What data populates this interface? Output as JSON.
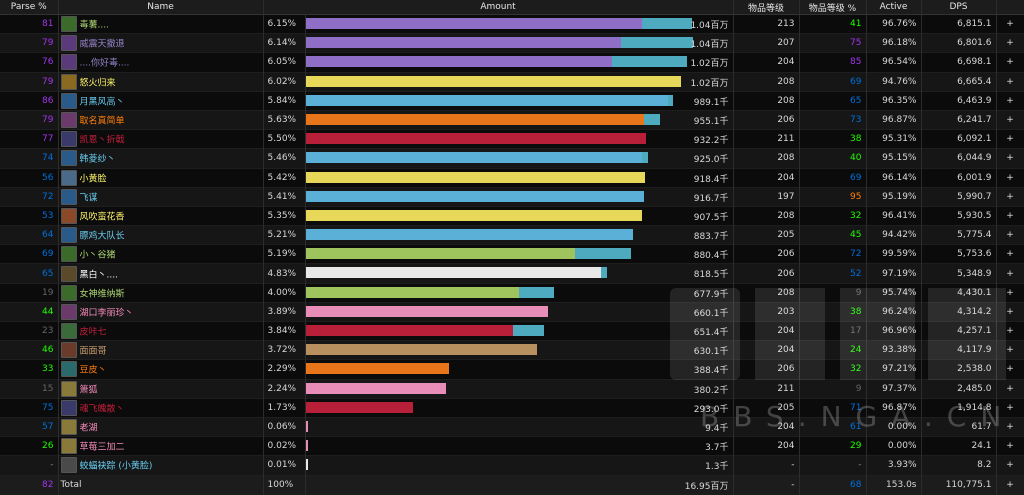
{
  "headers": {
    "parse": "Parse %",
    "name": "Name",
    "amount": "Amount",
    "ilvl": "物品等级",
    "ilvl_pct": "物品等级 %",
    "active": "Active",
    "dps": "DPS"
  },
  "rows": [
    {
      "parse": "81",
      "parse_color": "#a335ee",
      "name": "毒薯....",
      "name_color": "#abd473",
      "icon_color": "#3a6b2a",
      "pct": "6.15%",
      "frac1": 0.875,
      "frac2": 0.13,
      "c1": "#8f6ec8",
      "c2": "#4eaabf",
      "amount": "1.04百万",
      "ilvl": "213",
      "ilvl_pct": "41",
      "ilvl_pct_color": "#1eff00",
      "active": "96.76%",
      "dps": "6,815.1",
      "plus": "+"
    },
    {
      "parse": "79",
      "parse_color": "#a335ee",
      "name": "威震天撤退",
      "name_color": "#9482c9",
      "icon_color": "#5a3a7a",
      "pct": "6.14%",
      "frac1": 0.82,
      "frac2": 0.187,
      "c1": "#8f6ec8",
      "c2": "#4eaabf",
      "amount": "1.04百万",
      "ilvl": "207",
      "ilvl_pct": "75",
      "ilvl_pct_color": "#a335ee",
      "active": "96.18%",
      "dps": "6,801.6",
      "plus": "+"
    },
    {
      "parse": "76",
      "parse_color": "#a335ee",
      "name": "....你好毒....",
      "name_color": "#9482c9",
      "icon_color": "#5a3a7a",
      "pct": "6.05%",
      "frac1": 0.795,
      "frac2": 0.195,
      "c1": "#8f6ec8",
      "c2": "#4eaabf",
      "amount": "1.02百万",
      "ilvl": "204",
      "ilvl_pct": "85",
      "ilvl_pct_color": "#a335ee",
      "active": "96.54%",
      "dps": "6,698.1",
      "plus": "+"
    },
    {
      "parse": "79",
      "parse_color": "#a335ee",
      "name": "怒火归来",
      "name_color": "#fff569",
      "icon_color": "#8a6a20",
      "pct": "6.02%",
      "frac1": 0.975,
      "frac2": 0.0,
      "c1": "#e8d85a",
      "c2": "#4eaabf",
      "amount": "1.02百万",
      "ilvl": "208",
      "ilvl_pct": "69",
      "ilvl_pct_color": "#0070dd",
      "active": "94.76%",
      "dps": "6,665.4",
      "plus": "+"
    },
    {
      "parse": "86",
      "parse_color": "#a335ee",
      "name": "月黑风高丶",
      "name_color": "#69ccf0",
      "icon_color": "#2a5a8a",
      "pct": "5.84%",
      "frac1": 0.942,
      "frac2": 0.012,
      "c1": "#5bb0d8",
      "c2": "#4eaabf",
      "amount": "989.1千",
      "ilvl": "208",
      "ilvl_pct": "65",
      "ilvl_pct_color": "#0070dd",
      "active": "96.35%",
      "dps": "6,463.9",
      "plus": "+"
    },
    {
      "parse": "79",
      "parse_color": "#a335ee",
      "name": "取名真简单",
      "name_color": "#ff7d0a",
      "icon_color": "#6a3a6a",
      "pct": "5.63%",
      "frac1": 0.88,
      "frac2": 0.04,
      "c1": "#e8751a",
      "c2": "#4eaabf",
      "amount": "955.1千",
      "ilvl": "206",
      "ilvl_pct": "73",
      "ilvl_pct_color": "#0070dd",
      "active": "96.87%",
      "dps": "6,241.7",
      "plus": "+"
    },
    {
      "parse": "77",
      "parse_color": "#a335ee",
      "name": "凯恩丶折戟",
      "name_color": "#c41f3b",
      "icon_color": "#3a3a6a",
      "pct": "5.50%",
      "frac1": 0.885,
      "frac2": 0.0,
      "c1": "#b8203a",
      "c2": "#4eaabf",
      "amount": "932.2千",
      "ilvl": "211",
      "ilvl_pct": "38",
      "ilvl_pct_color": "#1eff00",
      "active": "95.31%",
      "dps": "6,092.1",
      "plus": "+"
    },
    {
      "parse": "74",
      "parse_color": "#0070dd",
      "name": "韩菱纱丶",
      "name_color": "#69ccf0",
      "icon_color": "#2a5a8a",
      "pct": "5.46%",
      "frac1": 0.873,
      "frac2": 0.017,
      "c1": "#5bb0d8",
      "c2": "#4eaabf",
      "amount": "925.0千",
      "ilvl": "208",
      "ilvl_pct": "40",
      "ilvl_pct_color": "#1eff00",
      "active": "95.15%",
      "dps": "6,044.9",
      "plus": "+"
    },
    {
      "parse": "56",
      "parse_color": "#0070dd",
      "name": "小黄脸",
      "name_color": "#fff569",
      "icon_color": "#4a6a8a",
      "pct": "5.42%",
      "frac1": 0.883,
      "frac2": 0.0,
      "c1": "#e8d85a",
      "c2": "#4eaabf",
      "amount": "918.4千",
      "ilvl": "204",
      "ilvl_pct": "69",
      "ilvl_pct_color": "#0070dd",
      "active": "96.14%",
      "dps": "6,001.9",
      "plus": "+"
    },
    {
      "parse": "72",
      "parse_color": "#0070dd",
      "name": "飞谋",
      "name_color": "#69ccf0",
      "icon_color": "#2a5a8a",
      "pct": "5.41%",
      "frac1": 0.88,
      "frac2": 0.0,
      "c1": "#5bb0d8",
      "c2": "#4eaabf",
      "amount": "916.7千",
      "ilvl": "197",
      "ilvl_pct": "95",
      "ilvl_pct_color": "#ff8000",
      "active": "95.19%",
      "dps": "5,990.7",
      "plus": "+"
    },
    {
      "parse": "53",
      "parse_color": "#0070dd",
      "name": "风吹蛮花香",
      "name_color": "#fff569",
      "icon_color": "#8a4a2a",
      "pct": "5.35%",
      "frac1": 0.873,
      "frac2": 0.0,
      "c1": "#e8d85a",
      "c2": "#4eaabf",
      "amount": "907.5千",
      "ilvl": "208",
      "ilvl_pct": "32",
      "ilvl_pct_color": "#1eff00",
      "active": "96.41%",
      "dps": "5,930.5",
      "plus": "+"
    },
    {
      "parse": "64",
      "parse_color": "#0070dd",
      "name": "膘鸡大队长",
      "name_color": "#69ccf0",
      "icon_color": "#2a5a8a",
      "pct": "5.21%",
      "frac1": 0.85,
      "frac2": 0.0,
      "c1": "#5bb0d8",
      "c2": "#4eaabf",
      "amount": "883.7千",
      "ilvl": "205",
      "ilvl_pct": "45",
      "ilvl_pct_color": "#1eff00",
      "active": "94.42%",
      "dps": "5,775.4",
      "plus": "+"
    },
    {
      "parse": "69",
      "parse_color": "#0070dd",
      "name": "小丶谷猪",
      "name_color": "#abd473",
      "icon_color": "#3a6b2a",
      "pct": "5.19%",
      "frac1": 0.7,
      "frac2": 0.145,
      "c1": "#9fc45e",
      "c2": "#4eaabf",
      "amount": "880.4千",
      "ilvl": "206",
      "ilvl_pct": "72",
      "ilvl_pct_color": "#0070dd",
      "active": "99.59%",
      "dps": "5,753.6",
      "plus": "+"
    },
    {
      "parse": "65",
      "parse_color": "#0070dd",
      "name": "黑白丶....",
      "name_color": "#ffffff",
      "icon_color": "#5a4a2a",
      "pct": "4.83%",
      "frac1": 0.768,
      "frac2": 0.015,
      "c1": "#e8e8e8",
      "c2": "#4eaabf",
      "amount": "818.5千",
      "ilvl": "206",
      "ilvl_pct": "52",
      "ilvl_pct_color": "#0070dd",
      "active": "97.19%",
      "dps": "5,348.9",
      "plus": "+"
    },
    {
      "parse": "19",
      "parse_color": "#666666",
      "name": "女神维纳斯",
      "name_color": "#abd473",
      "icon_color": "#3a6b2a",
      "pct": "4.00%",
      "frac1": 0.555,
      "frac2": 0.09,
      "c1": "#9fc45e",
      "c2": "#4eaabf",
      "amount": "677.9千",
      "ilvl": "208",
      "ilvl_pct": "9",
      "ilvl_pct_color": "#666666",
      "active": "95.74%",
      "dps": "4,430.1",
      "plus": "+"
    },
    {
      "parse": "44",
      "parse_color": "#1eff00",
      "name": "湖口李丽珍丶",
      "name_color": "#f58cba",
      "icon_color": "#6a3a6a",
      "pct": "3.89%",
      "frac1": 0.63,
      "frac2": 0.0,
      "c1": "#e88cb8",
      "c2": "#4eaabf",
      "amount": "660.1千",
      "ilvl": "203",
      "ilvl_pct": "38",
      "ilvl_pct_color": "#1eff00",
      "active": "96.24%",
      "dps": "4,314.2",
      "plus": "+"
    },
    {
      "parse": "23",
      "parse_color": "#666666",
      "name": "皮咔七",
      "name_color": "#c41f3b",
      "icon_color": "#3a6a3a",
      "pct": "3.84%",
      "frac1": 0.54,
      "frac2": 0.08,
      "c1": "#b8203a",
      "c2": "#4eaabf",
      "amount": "651.4千",
      "ilvl": "204",
      "ilvl_pct": "17",
      "ilvl_pct_color": "#666666",
      "active": "96.96%",
      "dps": "4,257.1",
      "plus": "+"
    },
    {
      "parse": "46",
      "parse_color": "#1eff00",
      "name": "面面哥",
      "name_color": "#c79c6e",
      "icon_color": "#6a3a2a",
      "pct": "3.72%",
      "frac1": 0.6,
      "frac2": 0.0,
      "c1": "#b89060",
      "c2": "#4eaabf",
      "amount": "630.1千",
      "ilvl": "204",
      "ilvl_pct": "24",
      "ilvl_pct_color": "#1eff00",
      "active": "93.38%",
      "dps": "4,117.9",
      "plus": "+"
    },
    {
      "parse": "33",
      "parse_color": "#1eff00",
      "name": "豆皮丶",
      "name_color": "#ff7d0a",
      "icon_color": "#2a6a6a",
      "pct": "2.29%",
      "frac1": 0.372,
      "frac2": 0.0,
      "c1": "#e8751a",
      "c2": "#4eaabf",
      "amount": "388.4千",
      "ilvl": "206",
      "ilvl_pct": "32",
      "ilvl_pct_color": "#1eff00",
      "active": "97.21%",
      "dps": "2,538.0",
      "plus": "+"
    },
    {
      "parse": "15",
      "parse_color": "#666666",
      "name": "箫狐",
      "name_color": "#f58cba",
      "icon_color": "#8a7a3a",
      "pct": "2.24%",
      "frac1": 0.364,
      "frac2": 0.0,
      "c1": "#e88cb8",
      "c2": "#4eaabf",
      "amount": "380.2千",
      "ilvl": "211",
      "ilvl_pct": "9",
      "ilvl_pct_color": "#666666",
      "active": "97.37%",
      "dps": "2,485.0",
      "plus": "+"
    },
    {
      "parse": "75",
      "parse_color": "#0070dd",
      "name": "魂飞魄散丶",
      "name_color": "#c41f3b",
      "icon_color": "#3a3a6a",
      "pct": "1.73%",
      "frac1": 0.28,
      "frac2": 0.0,
      "c1": "#b8203a",
      "c2": "#4eaabf",
      "amount": "293.0千",
      "ilvl": "205",
      "ilvl_pct": "71",
      "ilvl_pct_color": "#0070dd",
      "active": "96.87%",
      "dps": "1,914.8",
      "plus": "+"
    },
    {
      "parse": "57",
      "parse_color": "#0070dd",
      "name": "老湖",
      "name_color": "#f58cba",
      "icon_color": "#8a7a3a",
      "pct": "0.06%",
      "frac1": 0.01,
      "frac2": 0.0,
      "c1": "#e88cb8",
      "c2": "#4eaabf",
      "amount": "9.4千",
      "ilvl": "204",
      "ilvl_pct": "61",
      "ilvl_pct_color": "#0070dd",
      "active": "0.00%",
      "dps": "61.7",
      "plus": "+"
    },
    {
      "parse": "26",
      "parse_color": "#1eff00",
      "name": "草莓三加二",
      "name_color": "#f58cba",
      "icon_color": "#8a7a3a",
      "pct": "0.02%",
      "frac1": 0.004,
      "frac2": 0.0,
      "c1": "#e88cb8",
      "c2": "#4eaabf",
      "amount": "3.7千",
      "ilvl": "204",
      "ilvl_pct": "29",
      "ilvl_pct_color": "#1eff00",
      "active": "0.00%",
      "dps": "24.1",
      "plus": "+"
    },
    {
      "parse": "-",
      "parse_color": "#888888",
      "name": "蛟蝠袂踪 (小黄脸)",
      "name_color": "#69ccf0",
      "icon_color": "#4a4a4a",
      "pct": "0.01%",
      "frac1": 0.003,
      "frac2": 0.0,
      "c1": "#e8e8e8",
      "c2": "#4eaabf",
      "amount": "1.3千",
      "ilvl": "-",
      "ilvl_pct": "-",
      "ilvl_pct_color": "#888888",
      "active": "3.93%",
      "dps": "8.2",
      "plus": "+"
    }
  ],
  "total": {
    "parse": "82",
    "parse_color": "#a335ee",
    "name": "Total",
    "pct": "100%",
    "amount": "16.95百万",
    "ilvl": "-",
    "ilvl_pct": "68",
    "ilvl_pct_color": "#0070dd",
    "active": "153.0s",
    "dps": "110,775.1",
    "plus": "+"
  },
  "watermark": {
    "url_text": "BBS.NGA.CN"
  }
}
